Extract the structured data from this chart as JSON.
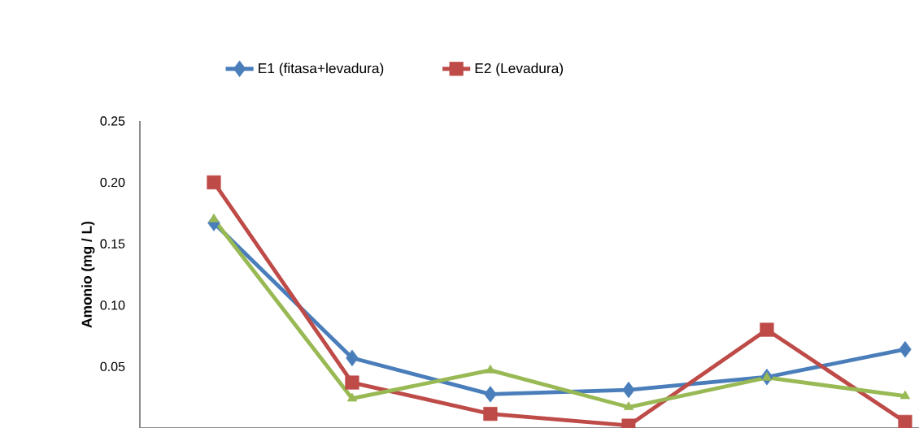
{
  "chart_data": {
    "type": "line",
    "ylabel": "Amonio (mg / L)",
    "categories": [
      null,
      null,
      null,
      null,
      null,
      null
    ],
    "series": [
      {
        "name": "E1 (fitasa+levadura)",
        "color": "#4a7ebb",
        "marker": "diamond",
        "values": [
          0.167,
          0.057,
          0.0275,
          0.031,
          0.0415,
          0.064
        ]
      },
      {
        "name": "E2 (Levadura)",
        "color": "#be4b48",
        "marker": "square",
        "values": [
          0.2,
          0.037,
          0.0115,
          0.002,
          0.08,
          0.005
        ]
      },
      {
        "color": "#98b954",
        "marker": "triangle",
        "values": [
          0.17,
          0.024,
          0.047,
          0.017,
          0.041,
          0.026
        ]
      }
    ],
    "ylim": [
      0,
      0.25
    ],
    "yticks": [
      {
        "value": 0.05,
        "label": "0.05"
      },
      {
        "value": 0.1,
        "label": "0.10"
      },
      {
        "value": 0.15,
        "label": "0.15"
      },
      {
        "value": 0.2,
        "label": "0.20"
      },
      {
        "value": 0.25,
        "label": "0.25"
      }
    ],
    "tick_labels": "y",
    "grid": false,
    "legend": "top",
    "line_style": "solid"
  }
}
